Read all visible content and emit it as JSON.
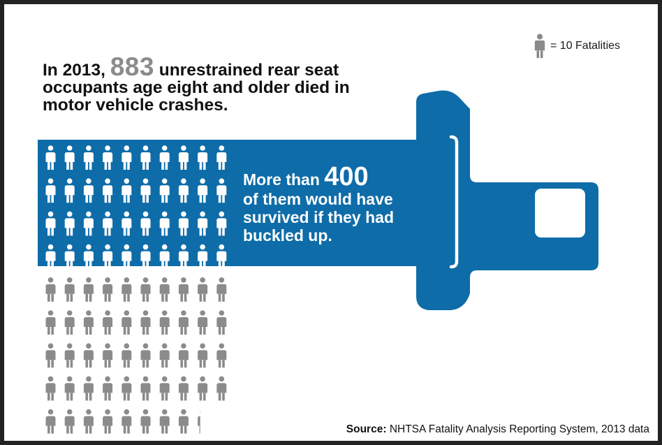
{
  "legend": {
    "icon": "person-icon",
    "text": "= 10 Fatalities"
  },
  "headline": {
    "prefix": "In 2013,",
    "number": "883",
    "suffix": "unrestrained rear seat occupants age eight and older died in motor vehicle crashes."
  },
  "callout": {
    "prefix": "More than",
    "number": "400",
    "rest": "of them would have survived if they had buckled up."
  },
  "pictogram": {
    "total": 883,
    "survivable": 400,
    "per_icon": 10,
    "icons_per_row": 10
  },
  "source": {
    "label": "Source:",
    "text": "NHTSA Fatality Analysis Reporting System, 2013 data"
  },
  "colors": {
    "belt_blue": "#0e6ca8",
    "person_white": "#ffffff",
    "person_gray": "#8b8b8b",
    "frame": "#232323",
    "accent_number": "#8b8b8b"
  }
}
